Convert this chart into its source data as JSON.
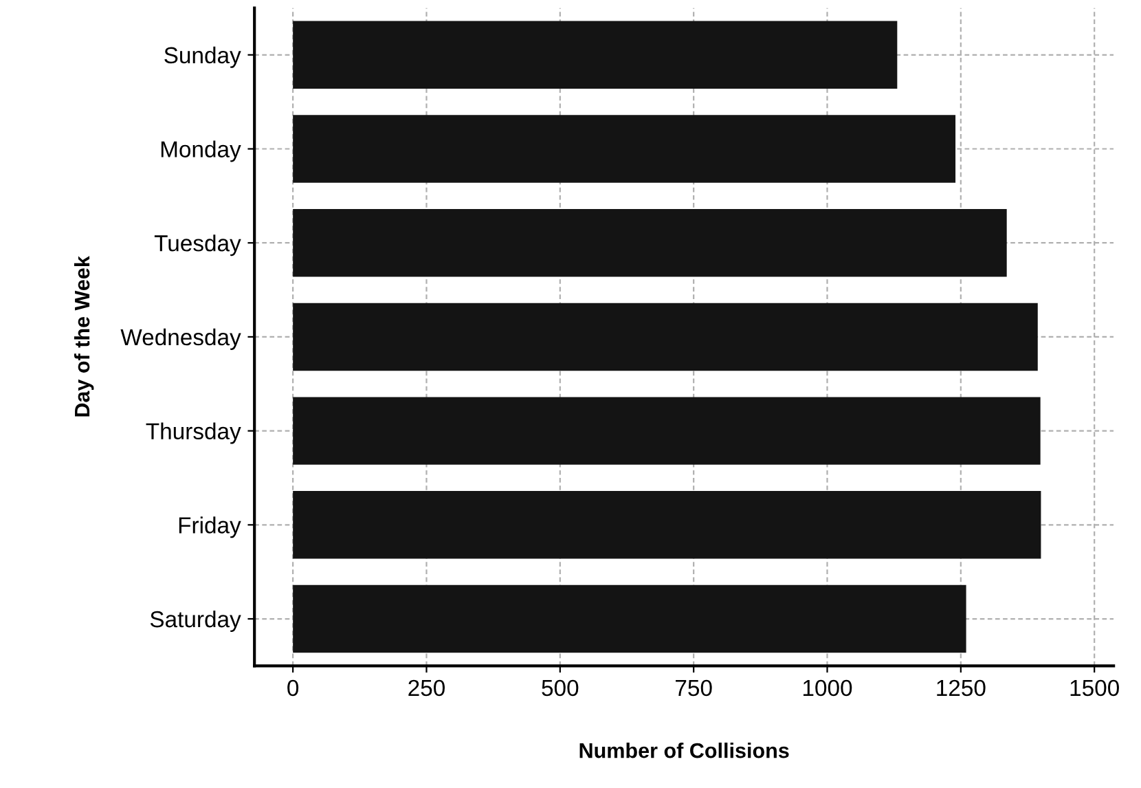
{
  "chart_data": {
    "type": "bar",
    "orientation": "horizontal",
    "xlabel": "Number of Collisions",
    "ylabel": "Day of the Week",
    "categories": [
      "Sunday",
      "Monday",
      "Tuesday",
      "Wednesday",
      "Thursday",
      "Friday",
      "Saturday"
    ],
    "values": [
      1131,
      1240,
      1336,
      1394,
      1399,
      1400,
      1260
    ],
    "color": "#141414",
    "xlim": [
      -72,
      1536
    ],
    "xticks": [
      0,
      250,
      500,
      750,
      1000,
      1250,
      1500
    ],
    "grid": true
  }
}
